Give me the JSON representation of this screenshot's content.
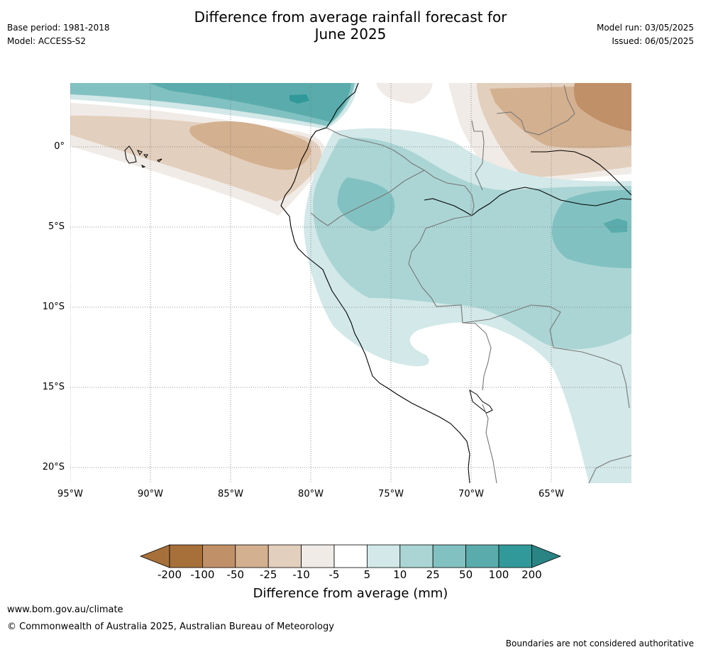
{
  "header": {
    "title_line1": "Difference from average rainfall forecast for",
    "title_line2": "June 2025",
    "base_period": "Base period: 1981-2018",
    "model": "Model: ACCESS-S2",
    "model_run": "Model run: 03/05/2025",
    "issued": "Issued: 06/05/2025"
  },
  "map": {
    "lon_labels": [
      "95°W",
      "90°W",
      "85°W",
      "80°W",
      "75°W",
      "70°W",
      "65°W"
    ],
    "lat_labels": [
      "0°",
      "5°S",
      "10°S",
      "15°S",
      "20°S"
    ],
    "colors": {
      "dry_200": "#a7703a",
      "dry_100": "#c09068",
      "dry_50": "#d3b08f",
      "dry_25": "#e3cfbd",
      "dry_10": "#f0ebe6",
      "neutral": "#ffffff",
      "wet_5": "#d3e8e8",
      "wet_10": "#abd5d5",
      "wet_25": "#82c1c1",
      "wet_50": "#5aacac",
      "wet_100": "#32999a",
      "wet_200": "#2a8484"
    }
  },
  "colorbar": {
    "ticks": [
      "-200",
      "-100",
      "-50",
      "-25",
      "-10",
      "-5",
      "5",
      "10",
      "25",
      "50",
      "100",
      "200"
    ],
    "label": "Difference from average (mm)"
  },
  "footer": {
    "url": "www.bom.gov.au/climate",
    "copyright": "© Commonwealth of Australia 2025, Australian Bureau of Meteorology",
    "disclaimer": "Boundaries are not considered authoritative"
  }
}
